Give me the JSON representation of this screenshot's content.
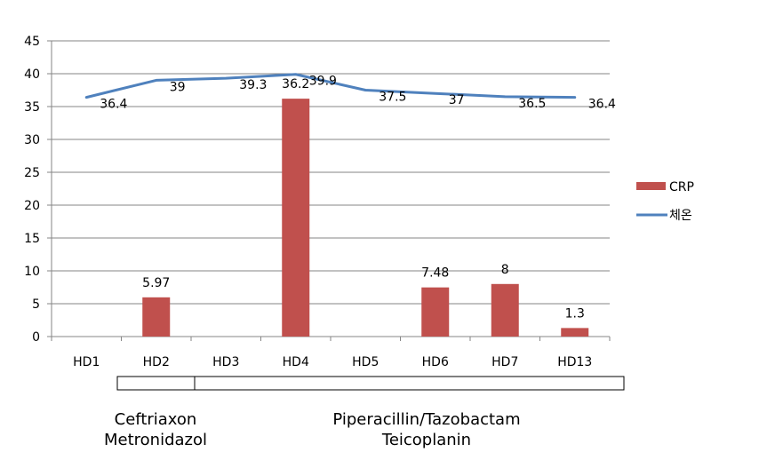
{
  "chart_data": {
    "type": "bar+line",
    "categories": [
      "HD1",
      "HD2",
      "HD3",
      "HD4",
      "HD5",
      "HD6",
      "HD7",
      "HD13"
    ],
    "ylim": [
      0,
      45
    ],
    "yticks": [
      0,
      5,
      10,
      15,
      20,
      25,
      30,
      35,
      40,
      45
    ],
    "grid": true,
    "legend_position": "right",
    "series": [
      {
        "name": "CRP",
        "kind": "bar",
        "color": "#C0504D",
        "values": [
          null,
          5.97,
          null,
          36.2,
          null,
          7.48,
          8,
          1.3
        ],
        "labels": [
          "",
          "5.97",
          "",
          "36.2",
          "",
          "7.48",
          "8",
          "1.3"
        ]
      },
      {
        "name": "체온",
        "kind": "line",
        "color": "#4F81BD",
        "values": [
          36.4,
          39,
          39.3,
          39.9,
          37.5,
          37,
          36.5,
          36.4
        ],
        "labels": [
          "36.4",
          "39",
          "39.3",
          "39.9",
          "37.5",
          "37",
          "36.5",
          "36.4"
        ]
      }
    ]
  },
  "antibiotics": {
    "regimen1": {
      "line1": "Ceftriaxon",
      "line2": "Metronidazol"
    },
    "regimen2": {
      "line1": "Piperacillin/Tazobactam",
      "line2": "Teicoplanin"
    }
  }
}
